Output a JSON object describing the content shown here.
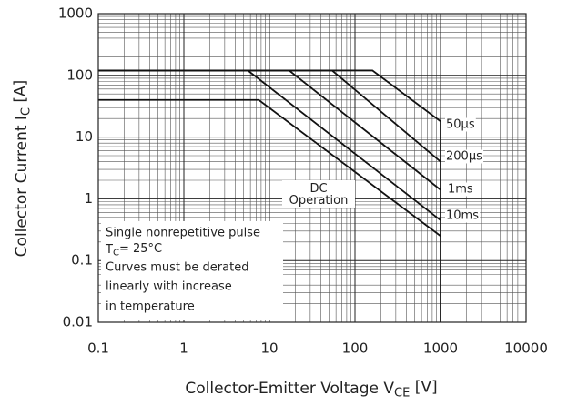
{
  "chart_data": {
    "type": "line",
    "xlabel": [
      "Collector-Emitter Voltage  V",
      "CE",
      " [V]"
    ],
    "ylabel": [
      "Collector Current  I",
      "C",
      " [A]"
    ],
    "log_x": true,
    "log_y": true,
    "grid": true,
    "xlim": [
      0.1,
      10000
    ],
    "ylim": [
      0.01,
      1000
    ],
    "xticks": [
      0.1,
      1,
      10,
      100,
      1000,
      10000
    ],
    "yticks": [
      0.01,
      0.1,
      1,
      10,
      100,
      1000
    ],
    "xgrid_minor": [
      0.2,
      0.3,
      0.4,
      0.5,
      0.6,
      0.7,
      0.8,
      0.9,
      2,
      3,
      4,
      5,
      6,
      7,
      8,
      9,
      20,
      30,
      40,
      50,
      60,
      70,
      80,
      90,
      200,
      300,
      400,
      500,
      600,
      700,
      800,
      900,
      2000,
      3000,
      4000,
      5000,
      6000,
      7000,
      8000,
      9000
    ],
    "ygrid_minor": [
      0.02,
      0.03,
      0.04,
      0.05,
      0.06,
      0.07,
      0.08,
      0.09,
      0.2,
      0.3,
      0.4,
      0.5,
      0.6,
      0.7,
      0.8,
      0.9,
      2,
      3,
      4,
      5,
      6,
      7,
      8,
      9,
      20,
      30,
      40,
      50,
      60,
      70,
      80,
      90,
      200,
      300,
      400,
      500,
      600,
      700,
      800,
      900
    ],
    "series": [
      {
        "name": "50μs",
        "color": "#111111",
        "x": [
          0.1,
          160,
          1000,
          1000
        ],
        "values": [
          120,
          120,
          18,
          0.01
        ]
      },
      {
        "name": "200μs",
        "color": "#111111",
        "x": [
          0.1,
          54,
          1000
        ],
        "values": [
          120,
          120,
          4
        ]
      },
      {
        "name": "1ms",
        "color": "#111111",
        "x": [
          0.1,
          17,
          1000
        ],
        "values": [
          120,
          120,
          1.4
        ]
      },
      {
        "name": "10ms",
        "color": "#111111",
        "x": [
          0.1,
          5.6,
          1000
        ],
        "values": [
          120,
          120,
          0.45
        ]
      },
      {
        "name": "DC Operation",
        "color": "#111111",
        "x": [
          0.1,
          7.5,
          1000
        ],
        "values": [
          40,
          40,
          0.25
        ]
      }
    ],
    "notes": [
      "Single nonrepetitive pulse",
      [
        "T",
        "C",
        "= 25°C"
      ],
      "Curves must be derated",
      "linearly with increase",
      "in temperature"
    ]
  }
}
